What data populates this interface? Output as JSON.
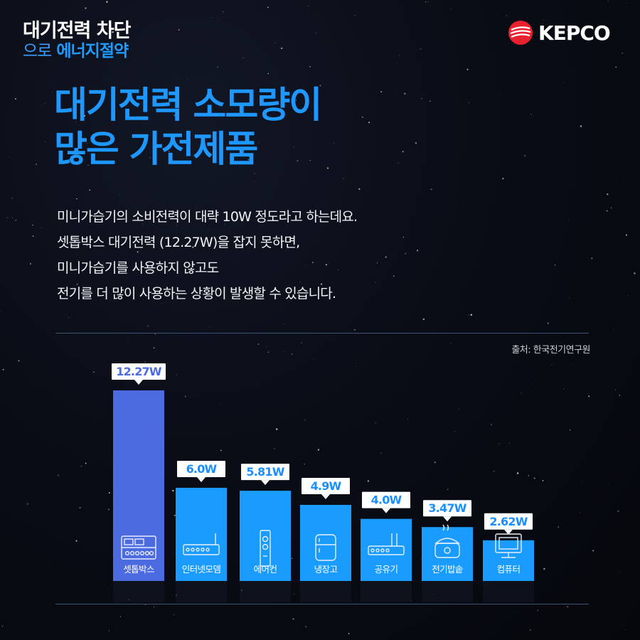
{
  "brand": {
    "line1": "대기전력 차단",
    "line2a": "으로",
    "line2b": "에너지절약"
  },
  "logo": {
    "text": "KEPCO",
    "color": "#e8212e"
  },
  "title": {
    "line1": "대기전력 소모량이",
    "line2": "많은 가전제품"
  },
  "description": [
    "미니가습기의 소비전력이 대략 10W 정도라고 하는데요.",
    "셋톱박스 대기전력 (12.27W)을 잡지 못하면,",
    "미니가습기를 사용하지 않고도",
    "전기를 더 많이 사용하는 상황이 발생할 수 있습니다."
  ],
  "source": "출처: 한국전기연구원",
  "colors": {
    "accent": "#1e98ff",
    "highlight_bar": "#4d6be0",
    "bar": "#1a9cff"
  },
  "chart_data": {
    "type": "bar",
    "categories": [
      "셋톱박스",
      "인터넷모뎀",
      "에어컨",
      "냉장고",
      "공유기",
      "전기밥솥",
      "컴퓨터"
    ],
    "values": [
      12.27,
      6.0,
      5.81,
      4.9,
      4.0,
      3.47,
      2.62
    ],
    "value_labels": [
      "12.27W",
      "6.0W",
      "5.81W",
      "4.9W",
      "4.0W",
      "3.47W",
      "2.62W"
    ],
    "icons": [
      "set-top-box-icon",
      "modem-icon",
      "air-conditioner-icon",
      "refrigerator-icon",
      "router-icon",
      "rice-cooker-icon",
      "computer-icon"
    ],
    "unit": "W",
    "highlight_index": 0
  }
}
